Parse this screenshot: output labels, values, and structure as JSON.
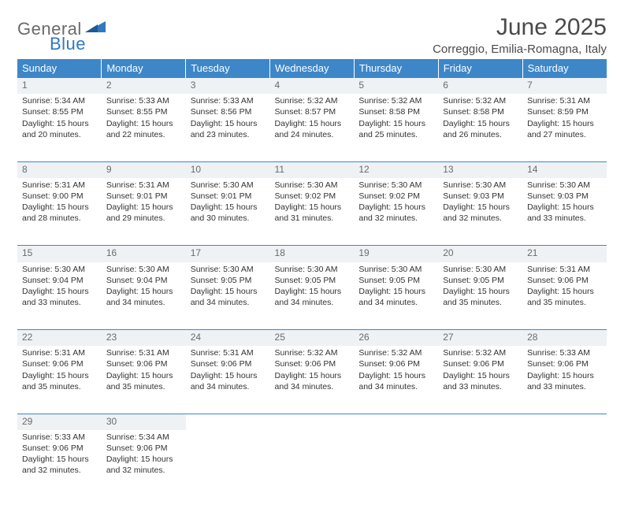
{
  "logo": {
    "general": "General",
    "blue": "Blue"
  },
  "title": "June 2025",
  "location": "Correggio, Emilia-Romagna, Italy",
  "colors": {
    "header_bg": "#3d87c9",
    "header_text": "#ffffff",
    "daynum_bg": "#eef2f5",
    "rule": "#3d87c9",
    "body_text": "#333333",
    "title_text": "#4a4a4a",
    "logo_gray": "#6a6a6a",
    "logo_blue": "#2f78c3",
    "page_bg": "#ffffff"
  },
  "typography": {
    "title_fontsize": 30,
    "location_fontsize": 15,
    "dayheader_fontsize": 13,
    "daynum_fontsize": 12,
    "cell_fontsize": 10.5
  },
  "day_headers": [
    "Sunday",
    "Monday",
    "Tuesday",
    "Wednesday",
    "Thursday",
    "Friday",
    "Saturday"
  ],
  "weeks": [
    [
      {
        "n": "1",
        "sr": "5:34 AM",
        "ss": "8:55 PM",
        "dl": "15 hours and 20 minutes."
      },
      {
        "n": "2",
        "sr": "5:33 AM",
        "ss": "8:55 PM",
        "dl": "15 hours and 22 minutes."
      },
      {
        "n": "3",
        "sr": "5:33 AM",
        "ss": "8:56 PM",
        "dl": "15 hours and 23 minutes."
      },
      {
        "n": "4",
        "sr": "5:32 AM",
        "ss": "8:57 PM",
        "dl": "15 hours and 24 minutes."
      },
      {
        "n": "5",
        "sr": "5:32 AM",
        "ss": "8:58 PM",
        "dl": "15 hours and 25 minutes."
      },
      {
        "n": "6",
        "sr": "5:32 AM",
        "ss": "8:58 PM",
        "dl": "15 hours and 26 minutes."
      },
      {
        "n": "7",
        "sr": "5:31 AM",
        "ss": "8:59 PM",
        "dl": "15 hours and 27 minutes."
      }
    ],
    [
      {
        "n": "8",
        "sr": "5:31 AM",
        "ss": "9:00 PM",
        "dl": "15 hours and 28 minutes."
      },
      {
        "n": "9",
        "sr": "5:31 AM",
        "ss": "9:01 PM",
        "dl": "15 hours and 29 minutes."
      },
      {
        "n": "10",
        "sr": "5:30 AM",
        "ss": "9:01 PM",
        "dl": "15 hours and 30 minutes."
      },
      {
        "n": "11",
        "sr": "5:30 AM",
        "ss": "9:02 PM",
        "dl": "15 hours and 31 minutes."
      },
      {
        "n": "12",
        "sr": "5:30 AM",
        "ss": "9:02 PM",
        "dl": "15 hours and 32 minutes."
      },
      {
        "n": "13",
        "sr": "5:30 AM",
        "ss": "9:03 PM",
        "dl": "15 hours and 32 minutes."
      },
      {
        "n": "14",
        "sr": "5:30 AM",
        "ss": "9:03 PM",
        "dl": "15 hours and 33 minutes."
      }
    ],
    [
      {
        "n": "15",
        "sr": "5:30 AM",
        "ss": "9:04 PM",
        "dl": "15 hours and 33 minutes."
      },
      {
        "n": "16",
        "sr": "5:30 AM",
        "ss": "9:04 PM",
        "dl": "15 hours and 34 minutes."
      },
      {
        "n": "17",
        "sr": "5:30 AM",
        "ss": "9:05 PM",
        "dl": "15 hours and 34 minutes."
      },
      {
        "n": "18",
        "sr": "5:30 AM",
        "ss": "9:05 PM",
        "dl": "15 hours and 34 minutes."
      },
      {
        "n": "19",
        "sr": "5:30 AM",
        "ss": "9:05 PM",
        "dl": "15 hours and 34 minutes."
      },
      {
        "n": "20",
        "sr": "5:30 AM",
        "ss": "9:05 PM",
        "dl": "15 hours and 35 minutes."
      },
      {
        "n": "21",
        "sr": "5:31 AM",
        "ss": "9:06 PM",
        "dl": "15 hours and 35 minutes."
      }
    ],
    [
      {
        "n": "22",
        "sr": "5:31 AM",
        "ss": "9:06 PM",
        "dl": "15 hours and 35 minutes."
      },
      {
        "n": "23",
        "sr": "5:31 AM",
        "ss": "9:06 PM",
        "dl": "15 hours and 35 minutes."
      },
      {
        "n": "24",
        "sr": "5:31 AM",
        "ss": "9:06 PM",
        "dl": "15 hours and 34 minutes."
      },
      {
        "n": "25",
        "sr": "5:32 AM",
        "ss": "9:06 PM",
        "dl": "15 hours and 34 minutes."
      },
      {
        "n": "26",
        "sr": "5:32 AM",
        "ss": "9:06 PM",
        "dl": "15 hours and 34 minutes."
      },
      {
        "n": "27",
        "sr": "5:32 AM",
        "ss": "9:06 PM",
        "dl": "15 hours and 33 minutes."
      },
      {
        "n": "28",
        "sr": "5:33 AM",
        "ss": "9:06 PM",
        "dl": "15 hours and 33 minutes."
      }
    ],
    [
      {
        "n": "29",
        "sr": "5:33 AM",
        "ss": "9:06 PM",
        "dl": "15 hours and 32 minutes."
      },
      {
        "n": "30",
        "sr": "5:34 AM",
        "ss": "9:06 PM",
        "dl": "15 hours and 32 minutes."
      },
      null,
      null,
      null,
      null,
      null
    ]
  ],
  "labels": {
    "sunrise": "Sunrise: ",
    "sunset": "Sunset: ",
    "daylight": "Daylight: "
  }
}
